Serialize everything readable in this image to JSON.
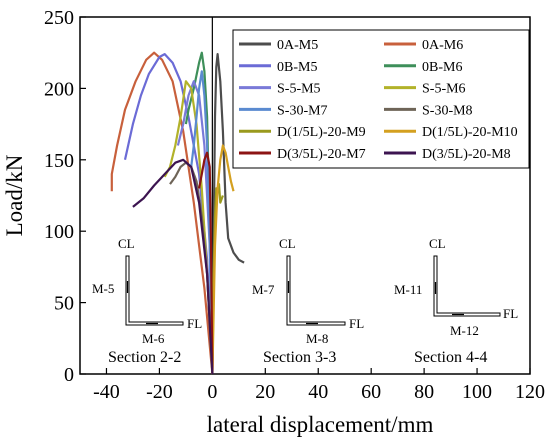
{
  "chart_data": {
    "type": "line",
    "xlabel": "lateral displacement/mm",
    "ylabel": "Load/kN",
    "xlim": [
      -50,
      120
    ],
    "ylim": [
      0,
      250
    ],
    "xticks": [
      -40,
      -20,
      0,
      20,
      40,
      60,
      80,
      100,
      120
    ],
    "yticks": [
      0,
      50,
      100,
      150,
      200,
      250
    ],
    "grid": false,
    "legend_position": "top-right",
    "series": [
      {
        "name": "0A-M5",
        "color": "#4d4d4d",
        "points": [
          [
            0,
            0
          ],
          [
            0.5,
            100
          ],
          [
            1,
            180
          ],
          [
            1.5,
            215
          ],
          [
            2,
            224
          ],
          [
            3,
            205
          ],
          [
            4,
            170
          ],
          [
            5,
            120
          ],
          [
            6,
            95
          ],
          [
            8,
            85
          ],
          [
            10,
            80
          ],
          [
            12,
            78
          ]
        ]
      },
      {
        "name": "0A-M6",
        "color": "#c8603c",
        "points": [
          [
            0,
            0
          ],
          [
            -3,
            60
          ],
          [
            -7,
            120
          ],
          [
            -11,
            170
          ],
          [
            -15,
            205
          ],
          [
            -19,
            220
          ],
          [
            -22,
            225
          ],
          [
            -25,
            220
          ],
          [
            -29,
            205
          ],
          [
            -33,
            185
          ],
          [
            -36,
            160
          ],
          [
            -38,
            140
          ],
          [
            -38,
            128
          ]
        ]
      },
      {
        "name": "0B-M5",
        "color": "#6b6bd6",
        "points": [
          [
            0,
            0
          ],
          [
            -2,
            80
          ],
          [
            -5,
            140
          ],
          [
            -9,
            180
          ],
          [
            -12,
            205
          ],
          [
            -15,
            218
          ],
          [
            -18,
            224
          ],
          [
            -20,
            222
          ],
          [
            -24,
            210
          ],
          [
            -27,
            195
          ],
          [
            -30,
            175
          ],
          [
            -33,
            150
          ]
        ]
      },
      {
        "name": "0B-M6",
        "color": "#3e8f5a",
        "points": [
          [
            0,
            0
          ],
          [
            -1,
            100
          ],
          [
            -2,
            180
          ],
          [
            -3,
            212
          ],
          [
            -4,
            225
          ],
          [
            -5,
            218
          ],
          [
            -7,
            200
          ],
          [
            -9,
            185
          ],
          [
            -10,
            175
          ]
        ]
      },
      {
        "name": "S-5-M5",
        "color": "#7a7ad8",
        "points": [
          [
            0,
            0
          ],
          [
            -1,
            90
          ],
          [
            -3,
            160
          ],
          [
            -5,
            195
          ],
          [
            -7,
            205
          ],
          [
            -9,
            195
          ],
          [
            -11,
            175
          ],
          [
            -13,
            160
          ]
        ]
      },
      {
        "name": "S-5-M6",
        "color": "#b2b22a",
        "points": [
          [
            0,
            0
          ],
          [
            -2,
            70
          ],
          [
            -4,
            130
          ],
          [
            -6,
            175
          ],
          [
            -8,
            200
          ],
          [
            -10,
            205
          ],
          [
            -12,
            180
          ],
          [
            -14,
            160
          ],
          [
            -16,
            145
          ],
          [
            -18,
            138
          ]
        ]
      },
      {
        "name": "S-30-M7",
        "color": "#5a8ad0",
        "points": [
          [
            0,
            0
          ],
          [
            -1,
            90
          ],
          [
            -2,
            160
          ],
          [
            -3,
            195
          ],
          [
            -4,
            212
          ],
          [
            -5,
            200
          ],
          [
            -6,
            180
          ],
          [
            -7,
            160
          ],
          [
            -8,
            145
          ]
        ]
      },
      {
        "name": "S-30-M8",
        "color": "#6e6457",
        "points": [
          [
            0,
            0
          ],
          [
            -2,
            70
          ],
          [
            -4,
            110
          ],
          [
            -6,
            135
          ],
          [
            -8,
            145
          ],
          [
            -10,
            148
          ],
          [
            -12,
            145
          ],
          [
            -14,
            138
          ],
          [
            -16,
            133
          ]
        ]
      },
      {
        "name": "D(1/5L)-20-M9",
        "color": "#9a9a1e",
        "points": [
          [
            0,
            0
          ],
          [
            0.5,
            70
          ],
          [
            1,
            110
          ],
          [
            1.5,
            130
          ],
          [
            2,
            128
          ],
          [
            2.5,
            133
          ],
          [
            3,
            120
          ],
          [
            4,
            125
          ]
        ]
      },
      {
        "name": "D(1/5L)-20-M10",
        "color": "#d4a020",
        "points": [
          [
            0,
            0
          ],
          [
            1,
            90
          ],
          [
            2,
            130
          ],
          [
            3,
            150
          ],
          [
            4,
            160
          ],
          [
            5,
            155
          ],
          [
            6,
            145
          ],
          [
            7,
            135
          ],
          [
            8,
            128
          ]
        ]
      },
      {
        "name": "D(3/5L)-20-M7",
        "color": "#8c1414",
        "points": [
          [
            0,
            0
          ],
          [
            -0.5,
            90
          ],
          [
            -1,
            145
          ],
          [
            -2,
            155
          ],
          [
            -3,
            150
          ],
          [
            -4,
            140
          ],
          [
            -5,
            130
          ]
        ]
      },
      {
        "name": "D(3/5L)-20-M8",
        "color": "#3c1450",
        "points": [
          [
            0,
            0
          ],
          [
            -2,
            70
          ],
          [
            -5,
            120
          ],
          [
            -8,
            145
          ],
          [
            -11,
            150
          ],
          [
            -14,
            148
          ],
          [
            -18,
            140
          ],
          [
            -22,
            132
          ],
          [
            -26,
            123
          ],
          [
            -30,
            117
          ]
        ]
      }
    ],
    "insets": [
      {
        "cl": "CL",
        "fl": "FL",
        "web_label": "M-5",
        "flange_label": "M-6",
        "section": "Section 2-2"
      },
      {
        "cl": "CL",
        "fl": "FL",
        "web_label": "M-7",
        "flange_label": "M-8",
        "section": "Section 3-3"
      },
      {
        "cl": "CL",
        "fl": "FL",
        "web_label": "M-11",
        "flange_label": "M-12",
        "section": "Section 4-4"
      }
    ]
  }
}
